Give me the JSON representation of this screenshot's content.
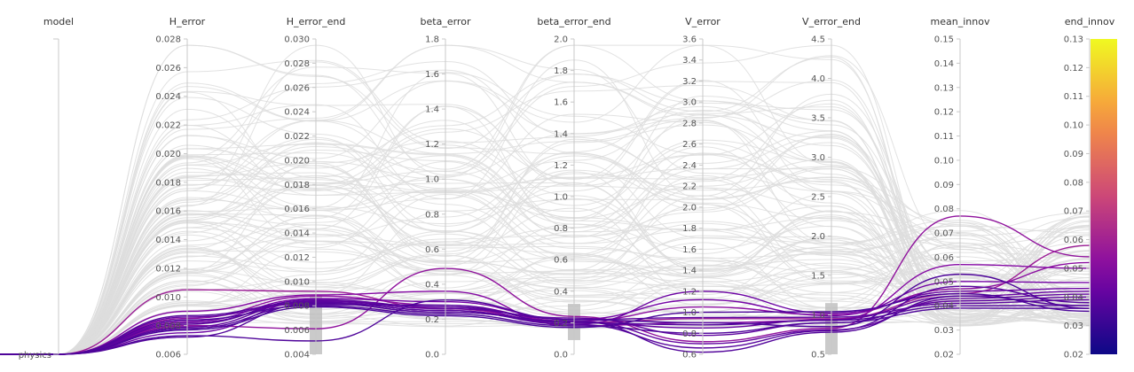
{
  "chart_data": {
    "type": "parallel_coordinates",
    "axes": [
      {
        "name": "model",
        "categorical": true,
        "categories": [
          "physics"
        ]
      },
      {
        "name": "H_error",
        "range": [
          0.006,
          0.028
        ],
        "ticks": [
          "0.006",
          "0.008",
          "0.010",
          "0.012",
          "0.014",
          "0.016",
          "0.018",
          "0.020",
          "0.022",
          "0.024",
          "0.026",
          "0.028"
        ]
      },
      {
        "name": "H_error_end",
        "range": [
          0.004,
          0.03
        ],
        "ticks": [
          "0.004",
          "0.006",
          "0.008",
          "0.010",
          "0.012",
          "0.014",
          "0.016",
          "0.018",
          "0.020",
          "0.022",
          "0.024",
          "0.026",
          "0.028",
          "0.030"
        ]
      },
      {
        "name": "beta_error",
        "range": [
          0.0,
          1.8
        ],
        "ticks": [
          "0.0",
          "0.2",
          "0.4",
          "0.6",
          "0.8",
          "1.0",
          "1.2",
          "1.4",
          "1.6",
          "1.8"
        ]
      },
      {
        "name": "beta_error_end",
        "range": [
          0.0,
          2.0
        ],
        "ticks": [
          "0.0",
          "0.2",
          "0.4",
          "0.6",
          "0.8",
          "1.0",
          "1.2",
          "1.4",
          "1.6",
          "1.8",
          "2.0"
        ]
      },
      {
        "name": "V_error",
        "range": [
          0.6,
          3.6
        ],
        "ticks": [
          "0.6",
          "0.8",
          "1.0",
          "1.2",
          "1.4",
          "1.6",
          "1.8",
          "2.0",
          "2.2",
          "2.4",
          "2.6",
          "2.8",
          "3.0",
          "3.2",
          "3.4",
          "3.6"
        ]
      },
      {
        "name": "V_error_end",
        "range": [
          0.5,
          4.5
        ],
        "ticks": [
          "0.5",
          "1.0",
          "1.5",
          "2.0",
          "2.5",
          "3.0",
          "3.5",
          "4.0",
          "4.5"
        ]
      },
      {
        "name": "mean_innov",
        "range": [
          0.02,
          0.15
        ],
        "ticks": [
          "0.02",
          "0.03",
          "0.04",
          "0.05",
          "0.06",
          "0.07",
          "0.08",
          "0.09",
          "0.10",
          "0.11",
          "0.12",
          "0.13",
          "0.14",
          "0.15"
        ]
      },
      {
        "name": "end_innov",
        "range": [
          0.02,
          0.13
        ],
        "ticks": [
          "0.02",
          "0.03",
          "0.04",
          "0.05",
          "0.06",
          "0.07",
          "0.08",
          "0.09",
          "0.10",
          "0.11",
          "0.12",
          "0.13"
        ]
      }
    ],
    "brush_filters": [
      {
        "axis": "H_error_end",
        "range": [
          0.004,
          0.0089
        ]
      },
      {
        "axis": "beta_error_end",
        "range": [
          0.09,
          0.32
        ]
      },
      {
        "axis": "V_error_end",
        "range": [
          0.5,
          1.15
        ]
      }
    ],
    "colorbar": {
      "axis": "end_innov",
      "range": [
        0.02,
        0.13
      ],
      "colormap": "plasma"
    },
    "highlighted_lines": [
      {
        "values": [
          0,
          0.0105,
          0.0092,
          0.26,
          0.2,
          0.94,
          0.95,
          0.045,
          0.058
        ]
      },
      {
        "values": [
          0,
          0.0085,
          0.0088,
          0.28,
          0.21,
          1.05,
          1.0,
          0.047,
          0.052
        ]
      },
      {
        "values": [
          0,
          0.008,
          0.0061,
          0.49,
          0.24,
          0.72,
          0.83,
          0.077,
          0.054
        ]
      },
      {
        "values": [
          0,
          0.009,
          0.0089,
          0.36,
          0.18,
          0.9,
          0.93,
          0.057,
          0.05
        ]
      },
      {
        "values": [
          0,
          0.0083,
          0.0086,
          0.3,
          0.22,
          1.12,
          0.99,
          0.05,
          0.045
        ]
      },
      {
        "values": [
          0,
          0.0075,
          0.0084,
          0.27,
          0.19,
          1.2,
          1.02,
          0.046,
          0.043
        ]
      },
      {
        "values": [
          0,
          0.0082,
          0.0083,
          0.25,
          0.2,
          0.85,
          0.94,
          0.044,
          0.042
        ]
      },
      {
        "values": [
          0,
          0.0086,
          0.0082,
          0.24,
          0.21,
          0.7,
          0.81,
          0.043,
          0.041
        ]
      },
      {
        "values": [
          0,
          0.0079,
          0.0084,
          0.26,
          0.23,
          0.78,
          0.9,
          0.042,
          0.04
        ]
      },
      {
        "values": [
          0,
          0.0081,
          0.0085,
          0.27,
          0.22,
          0.95,
          0.97,
          0.041,
          0.039
        ]
      },
      {
        "values": [
          0,
          0.0087,
          0.0083,
          0.25,
          0.19,
          0.66,
          0.8,
          0.048,
          0.038
        ]
      },
      {
        "values": [
          0,
          0.0078,
          0.0081,
          0.28,
          0.2,
          0.88,
          0.93,
          0.04,
          0.037
        ]
      },
      {
        "values": [
          0,
          0.0084,
          0.008,
          0.23,
          0.18,
          0.8,
          0.9,
          0.039,
          0.036
        ]
      },
      {
        "values": [
          0,
          0.0072,
          0.0082,
          0.24,
          0.21,
          0.62,
          0.78,
          0.044,
          0.037
        ]
      },
      {
        "values": [
          0,
          0.0077,
          0.0079,
          0.22,
          0.17,
          1.0,
          1.04,
          0.045,
          0.035
        ]
      },
      {
        "values": [
          0,
          0.0073,
          0.0051,
          0.31,
          0.22,
          0.9,
          0.85,
          0.053,
          0.036
        ]
      }
    ],
    "background_line_count": 110
  }
}
